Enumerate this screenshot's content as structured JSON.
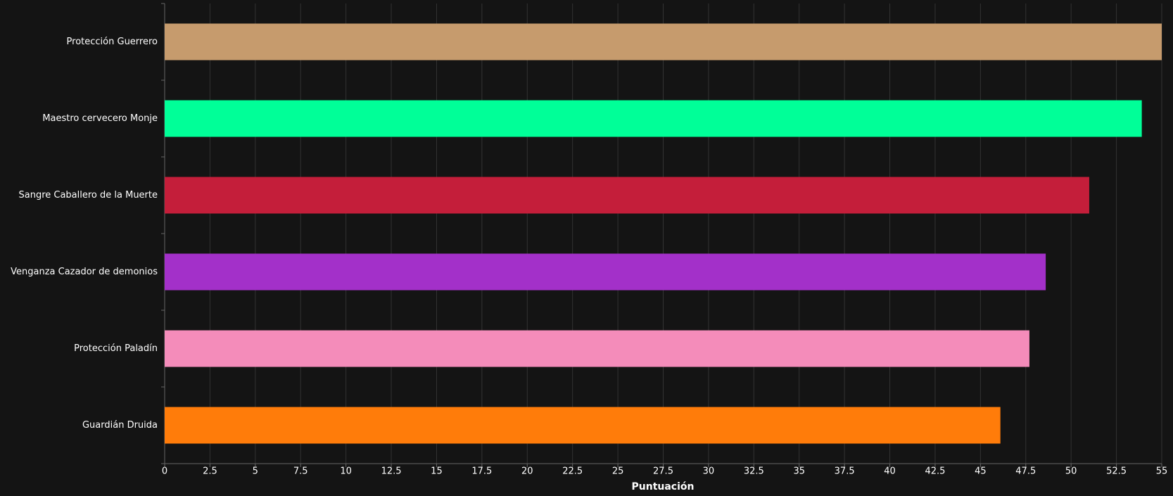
{
  "chart_data": {
    "type": "bar",
    "orientation": "horizontal",
    "categories": [
      "Protección Guerrero",
      "Maestro cervecero Monje",
      "Sangre Caballero de la Muerte",
      "Venganza Cazador de demonios",
      "Protección Paladín",
      "Guardián Druida"
    ],
    "values": [
      55.0,
      53.9,
      51.0,
      48.6,
      47.7,
      46.1
    ],
    "colors": [
      "#c69b6d",
      "#00ff98",
      "#c41e3a",
      "#a330c9",
      "#f48cba",
      "#ff7c0a"
    ],
    "xlim": [
      0,
      55
    ],
    "xticks": [
      0,
      2.5,
      5,
      7.5,
      10,
      12.5,
      15,
      17.5,
      20,
      22.5,
      25,
      27.5,
      30,
      32.5,
      35,
      37.5,
      40,
      42.5,
      45,
      47.5,
      50,
      52.5,
      55
    ],
    "x_label": "Puntuación",
    "grid": true
  }
}
